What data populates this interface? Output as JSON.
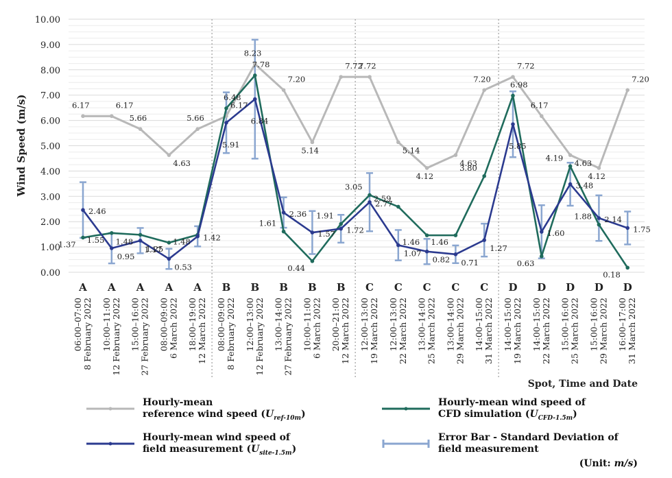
{
  "chart_data": {
    "type": "line",
    "ylabel": "Wind Speed (m/s)",
    "xlabel": "Spot, Time and Date",
    "unit_note": "(Unit:",
    "unit_value": "m/s",
    "unit_close": ")",
    "ylim": [
      0,
      10
    ],
    "yticks": [
      "0.00",
      "1.00",
      "2.00",
      "3.00",
      "4.00",
      "5.00",
      "6.00",
      "7.00",
      "8.00",
      "9.00",
      "10.00"
    ],
    "grid": true,
    "groups": [
      "A",
      "A",
      "A",
      "A",
      "A",
      "B",
      "B",
      "B",
      "B",
      "B",
      "C",
      "C",
      "C",
      "C",
      "C",
      "D",
      "D",
      "D",
      "D",
      "D"
    ],
    "times": [
      "06:00–07:00",
      "10:00–11:00",
      "15:00–16:00",
      "08:00–09:00",
      "18:00–19:00",
      "08:00–09:00",
      "12:00–13:00",
      "13:00–14:00",
      "10:00–11:00",
      "20:00–21:00",
      "12:00–13:00",
      "12:00–13:00",
      "13:00–14:00",
      "13:00–14:00",
      "14:00–15:00",
      "14:00–15:00",
      "14:00–15:00",
      "15:00–16:00",
      "15:00–16:00",
      "16:00–17:00"
    ],
    "dates": [
      "8 February 2022",
      "12 February 2022",
      "27 February 2022",
      "6 March 2022",
      "12 March 2022",
      "8 February 2022",
      "12 February 2022",
      "27 February 2022",
      "6 March 2022",
      "12 March 2022",
      "19 March 2022",
      "22 March 2022",
      "25 March 2022",
      "29 March 2022",
      "31 March 2022",
      "19 March 2022",
      "22 March 2022",
      "25 March 2022",
      "29 March 2022",
      "31 March 2022"
    ],
    "series": [
      {
        "key": "ref",
        "color": "#b8b8b8",
        "labels": [
          "6.17",
          "6.17",
          "5.66",
          "4.63",
          "5.66",
          "6.17",
          "8.23",
          "7.20",
          "5.14",
          "7.72",
          "7.72",
          "5.14",
          "4.12",
          "4.63",
          "7.20",
          "7.72",
          "6.17",
          "4.63",
          "4.12",
          "7.20"
        ],
        "values": [
          6.17,
          6.17,
          5.66,
          4.63,
          5.66,
          6.17,
          8.23,
          7.2,
          5.14,
          7.72,
          7.72,
          5.14,
          4.12,
          4.63,
          7.2,
          7.72,
          6.17,
          4.63,
          4.12,
          7.2
        ]
      },
      {
        "key": "cfd",
        "color": "#1f6b5c",
        "labels": [
          "1.37",
          "1.55",
          "1.48",
          "1.17",
          "1.48",
          "6.48",
          "7.78",
          "1.61",
          "0.44",
          "1.91",
          "3.05",
          "2.59",
          "1.46",
          "1.46",
          "3.80",
          "6.98",
          "0.63",
          "4.19",
          "1.88",
          "0.18"
        ],
        "values": [
          1.37,
          1.55,
          1.48,
          1.17,
          1.48,
          6.48,
          7.78,
          1.61,
          0.44,
          1.91,
          3.05,
          2.59,
          1.46,
          1.46,
          3.8,
          6.98,
          0.63,
          4.19,
          1.88,
          0.18
        ]
      },
      {
        "key": "site",
        "color": "#2b3a8f",
        "labels": [
          "2.46",
          "0.95",
          "1.25",
          "0.53",
          "1.42",
          "5.91",
          "6.84",
          "2.36",
          "1.57",
          "1.72",
          "2.77",
          "1.07",
          "0.82",
          "0.71",
          "1.27",
          "5.85",
          "1.60",
          "3.48",
          "2.14",
          "1.75"
        ],
        "values": [
          2.46,
          0.95,
          1.25,
          0.53,
          1.42,
          5.91,
          6.84,
          2.36,
          1.57,
          1.72,
          2.77,
          1.07,
          0.82,
          0.71,
          1.27,
          5.85,
          1.6,
          3.48,
          2.14,
          1.75
        ]
      }
    ],
    "error_sd": [
      1.1,
      0.6,
      0.5,
      0.4,
      0.4,
      1.2,
      2.35,
      0.6,
      0.85,
      0.55,
      1.15,
      0.6,
      0.5,
      0.35,
      0.65,
      1.3,
      1.05,
      0.85,
      0.9,
      0.65
    ],
    "error_color": "#8aa6d0"
  },
  "legend": {
    "ref_line1": "Hourly-mean",
    "ref_line2": "reference wind speed (",
    "ref_sym": "U",
    "ref_sub": "ref-10m",
    "ref_end": ")",
    "cfd_line1": "Hourly-mean wind speed of",
    "cfd_line2": "CFD simulation (",
    "cfd_sym": "U",
    "cfd_sub": "CFD-1.5m",
    "cfd_end": ")",
    "site_line1": "Hourly-mean wind speed of",
    "site_line2": "field measurement (",
    "site_sym": "U",
    "site_sub": "site-1.5m",
    "site_end": ")",
    "err_line1": "Error Bar - Standard Deviation of",
    "err_line2": "field measurement"
  }
}
